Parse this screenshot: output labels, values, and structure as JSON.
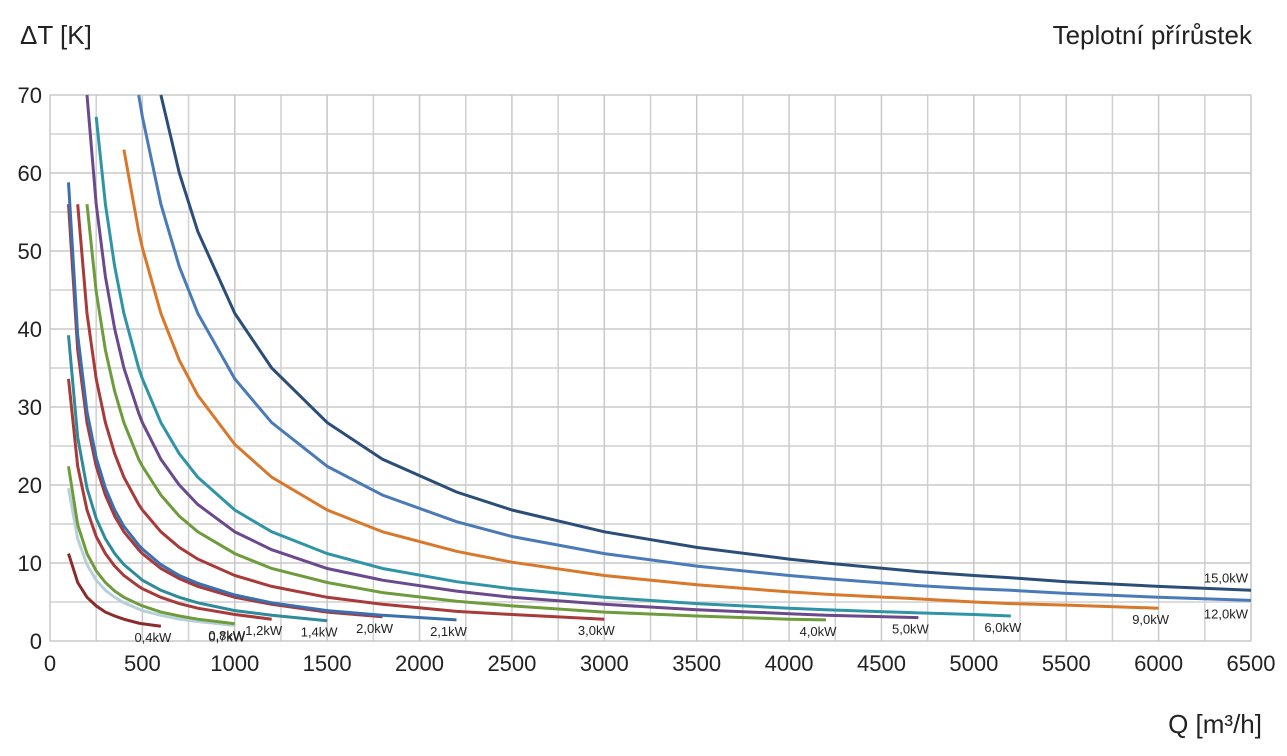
{
  "chart_data": {
    "type": "line",
    "title": "Teplotní přírůstek",
    "y_label": "ΔT [K]",
    "x_label": "Q [m³/h]",
    "x": [
      100,
      150,
      200,
      250,
      300,
      350,
      400,
      480,
      500,
      600,
      700,
      800,
      1000,
      1200,
      1500,
      1800,
      2200,
      2500,
      3000,
      3500,
      4000,
      4200,
      4700,
      5000,
      5200,
      5500,
      6000,
      6500
    ],
    "xlim": [
      0,
      6500
    ],
    "ylim": [
      0,
      70
    ],
    "xticks": [
      0,
      500,
      1000,
      1500,
      2000,
      2500,
      3000,
      3500,
      4000,
      4500,
      5000,
      5500,
      6000,
      6500
    ],
    "yticks": [
      0,
      10,
      20,
      30,
      40,
      50,
      60,
      70
    ],
    "grid": true,
    "series": [
      {
        "name": "0,4kW",
        "color": "#8b2c2c",
        "values": [
          11.2,
          7.5,
          5.6,
          4.5,
          3.7,
          3.2,
          2.8,
          2.3,
          2.2,
          1.9,
          null,
          null,
          null,
          null,
          null,
          null,
          null,
          null,
          null,
          null,
          null,
          null,
          null,
          null,
          null,
          null,
          null,
          null
        ]
      },
      {
        "name": "0,7kW",
        "color": "#b7cfd9",
        "values": [
          19.6,
          13.1,
          9.8,
          7.8,
          6.5,
          5.6,
          4.9,
          4.1,
          3.9,
          3.3,
          2.8,
          2.5,
          2.0,
          null,
          null,
          null,
          null,
          null,
          null,
          null,
          null,
          null,
          null,
          null,
          null,
          null,
          null,
          null
        ]
      },
      {
        "name": "0,8kW",
        "color": "#6e9c3c",
        "values": [
          22.4,
          14.9,
          11.2,
          9.0,
          7.5,
          6.4,
          5.6,
          4.7,
          4.5,
          3.7,
          3.2,
          2.8,
          2.2,
          null,
          null,
          null,
          null,
          null,
          null,
          null,
          null,
          null,
          null,
          null,
          null,
          null,
          null,
          null
        ]
      },
      {
        "name": "1,2kW",
        "color": "#a83a3a",
        "values": [
          33.6,
          22.4,
          16.8,
          13.4,
          11.2,
          9.6,
          8.4,
          7.0,
          6.7,
          5.6,
          4.8,
          4.2,
          3.4,
          2.8,
          null,
          null,
          null,
          null,
          null,
          null,
          null,
          null,
          null,
          null,
          null,
          null,
          null,
          null
        ]
      },
      {
        "name": "1,4kW",
        "color": "#2f8a9a",
        "values": [
          39.2,
          26.1,
          19.6,
          15.7,
          13.1,
          11.2,
          9.8,
          8.2,
          7.8,
          6.5,
          5.6,
          4.9,
          3.9,
          3.3,
          2.6,
          null,
          null,
          null,
          null,
          null,
          null,
          null,
          null,
          null,
          null,
          null,
          null,
          null
        ]
      },
      {
        "name": "2,0kW",
        "color": "#a83a3a",
        "values": [
          56,
          37.3,
          28,
          22.4,
          18.7,
          16,
          14,
          11.7,
          11.2,
          9.3,
          8,
          7,
          5.6,
          4.7,
          3.7,
          3.1,
          null,
          null,
          null,
          null,
          null,
          null,
          null,
          null,
          null,
          null,
          null,
          null
        ]
      },
      {
        "name": "2,1kW",
        "color": "#3a6fb0",
        "values": [
          58.8,
          39.2,
          29.4,
          23.5,
          19.6,
          16.8,
          14.7,
          12.3,
          11.8,
          9.8,
          8.4,
          7.4,
          5.9,
          4.9,
          3.9,
          3.3,
          2.7,
          null,
          null,
          null,
          null,
          null,
          null,
          null,
          null,
          null,
          null,
          null
        ]
      },
      {
        "name": "3,0kW",
        "color": "#a83a3a",
        "values": [
          null,
          56,
          42,
          33.6,
          28,
          24,
          21,
          17.5,
          16.8,
          14,
          12,
          10.5,
          8.4,
          7,
          5.6,
          4.7,
          3.8,
          3.4,
          2.8,
          null,
          null,
          null,
          null,
          null,
          null,
          null,
          null,
          null
        ]
      },
      {
        "name": "4,0kW",
        "color": "#6e9c3c",
        "values": [
          null,
          null,
          56,
          44.8,
          37.3,
          32,
          28,
          23.3,
          22.4,
          18.7,
          16,
          14,
          11.2,
          9.3,
          7.5,
          6.2,
          5.1,
          4.5,
          3.7,
          3.2,
          2.8,
          2.7,
          null,
          null,
          null,
          null,
          null,
          null
        ]
      },
      {
        "name": "5,0kW",
        "color": "#6a4a8c",
        "values": [
          null,
          null,
          70,
          56,
          46.7,
          40,
          35,
          29.2,
          28,
          23.3,
          20,
          17.5,
          14,
          11.7,
          9.3,
          7.8,
          6.4,
          5.6,
          4.7,
          4,
          3.5,
          3.3,
          3.0,
          null,
          null,
          null,
          null,
          null
        ]
      },
      {
        "name": "6,0kW",
        "color": "#2f94a6",
        "values": [
          null,
          null,
          null,
          67.2,
          56,
          48,
          42,
          35,
          33.6,
          28,
          24,
          21,
          16.8,
          14,
          11.2,
          9.3,
          7.6,
          6.7,
          5.6,
          4.8,
          4.2,
          4,
          3.6,
          3.4,
          3.2,
          null,
          null,
          null
        ]
      },
      {
        "name": "9,0kW",
        "color": "#d9782a",
        "values": [
          null,
          null,
          null,
          null,
          null,
          null,
          63,
          52.5,
          50.4,
          42,
          36,
          31.5,
          25.2,
          21,
          16.8,
          14,
          11.5,
          10.1,
          8.4,
          7.2,
          6.3,
          6,
          5.4,
          5,
          4.8,
          4.6,
          4.2,
          null
        ]
      },
      {
        "name": "12,0kW",
        "color": "#4a7ab8",
        "values": [
          null,
          null,
          null,
          null,
          null,
          null,
          null,
          70,
          67.2,
          56,
          48,
          42,
          33.6,
          28,
          22.4,
          18.7,
          15.3,
          13.4,
          11.2,
          9.6,
          8.4,
          8,
          7.1,
          6.7,
          6.5,
          6.1,
          5.6,
          5.2
        ]
      },
      {
        "name": "15,0kW",
        "color": "#2b4e78",
        "values": [
          null,
          null,
          null,
          null,
          null,
          null,
          null,
          null,
          null,
          70,
          60,
          52.5,
          42,
          35,
          28,
          23.3,
          19.1,
          16.8,
          14,
          12,
          10.5,
          10,
          8.9,
          8.4,
          8.1,
          7.6,
          7,
          6.5
        ]
      }
    ]
  }
}
